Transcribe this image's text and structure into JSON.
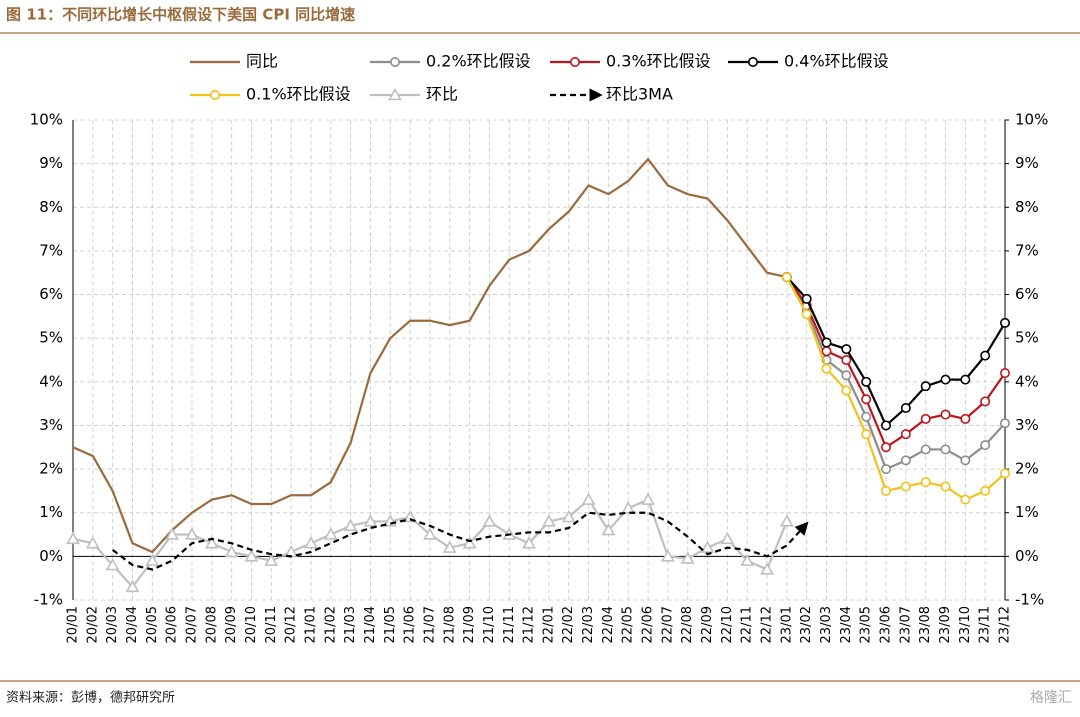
{
  "chart_data": {
    "type": "line",
    "title": "图 11：不同环比增长中枢假设下美国 CPI 同比增速",
    "source": "资料来源：彭博，德邦研究所",
    "watermark": "格隆汇",
    "categories": [
      "20/01",
      "20/02",
      "20/03",
      "20/04",
      "20/05",
      "20/06",
      "20/07",
      "20/08",
      "20/09",
      "20/10",
      "20/11",
      "20/12",
      "21/01",
      "21/02",
      "21/03",
      "21/04",
      "21/05",
      "21/06",
      "21/07",
      "21/08",
      "21/09",
      "21/10",
      "21/11",
      "21/12",
      "22/01",
      "22/02",
      "22/03",
      "22/04",
      "22/05",
      "22/06",
      "22/07",
      "22/08",
      "22/09",
      "22/10",
      "22/11",
      "22/12",
      "23/01",
      "23/02",
      "23/03",
      "23/04",
      "23/05",
      "23/06",
      "23/07",
      "23/08",
      "23/09",
      "23/10",
      "23/11",
      "23/12"
    ],
    "ylim": [
      -1,
      10
    ],
    "yticks": [
      {
        "value": -1,
        "label": "-1%"
      },
      {
        "value": 0,
        "label": "0%"
      },
      {
        "value": 1,
        "label": "1%"
      },
      {
        "value": 2,
        "label": "2%"
      },
      {
        "value": 3,
        "label": "3%"
      },
      {
        "value": 4,
        "label": "4%"
      },
      {
        "value": 5,
        "label": "5%"
      },
      {
        "value": 6,
        "label": "6%"
      },
      {
        "value": 7,
        "label": "7%"
      },
      {
        "value": 8,
        "label": "8%"
      },
      {
        "value": 9,
        "label": "9%"
      },
      {
        "value": 10,
        "label": "10%"
      }
    ],
    "y2lim": [
      -1,
      10
    ],
    "y2ticks": [
      {
        "value": -1,
        "label": "-1%"
      },
      {
        "value": 0,
        "label": "0%"
      },
      {
        "value": 1,
        "label": "1%"
      },
      {
        "value": 2,
        "label": "2%"
      },
      {
        "value": 3,
        "label": "3%"
      },
      {
        "value": 4,
        "label": "4%"
      },
      {
        "value": 5,
        "label": "5%"
      },
      {
        "value": 6,
        "label": "6%"
      },
      {
        "value": 7,
        "label": "7%"
      },
      {
        "value": 8,
        "label": "8%"
      },
      {
        "value": 9,
        "label": "9%"
      },
      {
        "value": 10,
        "label": "10%"
      }
    ],
    "grid": true,
    "series": [
      {
        "name": "同比",
        "color": "#9b6a3c",
        "marker": "none",
        "dash": false,
        "values": [
          2.5,
          2.3,
          1.5,
          0.3,
          0.1,
          0.6,
          1.0,
          1.3,
          1.4,
          1.2,
          1.2,
          1.4,
          1.4,
          1.7,
          2.6,
          4.2,
          5.0,
          5.4,
          5.4,
          5.3,
          5.4,
          6.2,
          6.8,
          7.0,
          7.5,
          7.9,
          8.5,
          8.3,
          8.6,
          9.1,
          8.5,
          8.3,
          8.2,
          7.7,
          7.1,
          6.5,
          6.4,
          null,
          null,
          null,
          null,
          null,
          null,
          null,
          null,
          null,
          null,
          null
        ]
      },
      {
        "name": "0.2%环比假设",
        "color": "#8c8c8c",
        "marker": "circle",
        "dash": false,
        "values": [
          null,
          null,
          null,
          null,
          null,
          null,
          null,
          null,
          null,
          null,
          null,
          null,
          null,
          null,
          null,
          null,
          null,
          null,
          null,
          null,
          null,
          null,
          null,
          null,
          null,
          null,
          null,
          null,
          null,
          null,
          null,
          null,
          null,
          null,
          null,
          null,
          6.4,
          5.65,
          4.5,
          4.15,
          3.2,
          2.0,
          2.2,
          2.45,
          2.45,
          2.2,
          2.55,
          3.05
        ]
      },
      {
        "name": "0.3%环比假设",
        "color": "#c0141c",
        "marker": "circle",
        "dash": false,
        "values": [
          null,
          null,
          null,
          null,
          null,
          null,
          null,
          null,
          null,
          null,
          null,
          null,
          null,
          null,
          null,
          null,
          null,
          null,
          null,
          null,
          null,
          null,
          null,
          null,
          null,
          null,
          null,
          null,
          null,
          null,
          null,
          null,
          null,
          null,
          null,
          null,
          6.4,
          5.75,
          4.7,
          4.5,
          3.6,
          2.5,
          2.8,
          3.15,
          3.25,
          3.15,
          3.55,
          4.2
        ]
      },
      {
        "name": "0.4%环比假设",
        "color": "#000000",
        "marker": "circle",
        "dash": false,
        "values": [
          null,
          null,
          null,
          null,
          null,
          null,
          null,
          null,
          null,
          null,
          null,
          null,
          null,
          null,
          null,
          null,
          null,
          null,
          null,
          null,
          null,
          null,
          null,
          null,
          null,
          null,
          null,
          null,
          null,
          null,
          null,
          null,
          null,
          null,
          null,
          null,
          6.4,
          5.9,
          4.9,
          4.75,
          4.0,
          3.0,
          3.4,
          3.9,
          4.05,
          4.05,
          4.6,
          5.35
        ]
      },
      {
        "name": "0.1%环比假设",
        "color": "#f2c218",
        "marker": "circle",
        "dash": false,
        "values": [
          null,
          null,
          null,
          null,
          null,
          null,
          null,
          null,
          null,
          null,
          null,
          null,
          null,
          null,
          null,
          null,
          null,
          null,
          null,
          null,
          null,
          null,
          null,
          null,
          null,
          null,
          null,
          null,
          null,
          null,
          null,
          null,
          null,
          null,
          null,
          null,
          6.4,
          5.55,
          4.3,
          3.8,
          2.8,
          1.5,
          1.6,
          1.7,
          1.6,
          1.3,
          1.5,
          1.9
        ]
      },
      {
        "name": "环比",
        "color": "#bfbfbf",
        "marker": "triangle",
        "dash": false,
        "values": [
          0.4,
          0.3,
          -0.2,
          -0.7,
          -0.1,
          0.5,
          0.5,
          0.3,
          0.1,
          0.0,
          -0.1,
          0.1,
          0.3,
          0.5,
          0.7,
          0.8,
          0.8,
          0.9,
          0.5,
          0.2,
          0.3,
          0.8,
          0.5,
          0.3,
          0.8,
          0.9,
          1.3,
          0.6,
          1.1,
          1.3,
          0.0,
          -0.05,
          0.2,
          0.4,
          -0.1,
          -0.3,
          0.8,
          null,
          null,
          null,
          null,
          null,
          null,
          null,
          null,
          null,
          null,
          null
        ]
      },
      {
        "name": "环比3MA",
        "color": "#000000",
        "marker": "arrow",
        "dash": true,
        "values": [
          null,
          null,
          0.15,
          -0.2,
          -0.3,
          -0.1,
          0.3,
          0.4,
          0.3,
          0.15,
          0.05,
          0.0,
          0.1,
          0.3,
          0.5,
          0.65,
          0.75,
          0.85,
          0.7,
          0.5,
          0.35,
          0.45,
          0.5,
          0.55,
          0.55,
          0.65,
          1.0,
          0.95,
          1.0,
          1.0,
          0.8,
          0.45,
          0.05,
          0.2,
          0.15,
          0.0,
          0.25,
          0.75,
          null,
          null,
          null,
          null,
          null,
          null,
          null,
          null,
          null,
          null
        ]
      }
    ]
  }
}
